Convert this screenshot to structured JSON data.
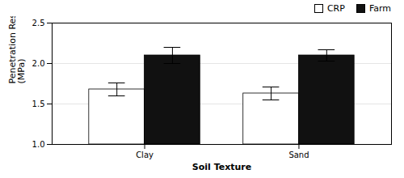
{
  "chart_data": {
    "type": "bar",
    "xlabel": "Soil Texture",
    "ylabel": "Penetration Resistance\n(MPa)",
    "categories": [
      "Clay",
      "Sand"
    ],
    "series": [
      {
        "name": "CRP",
        "color": "#ffffff",
        "values": [
          1.68,
          1.63
        ],
        "errors": [
          0.08,
          0.08
        ]
      },
      {
        "name": "Farm",
        "color": "#111111",
        "values": [
          2.1,
          2.1
        ],
        "errors": [
          0.1,
          0.07
        ]
      }
    ],
    "ylim": [
      1.0,
      2.5
    ],
    "yticks": [
      {
        "value": 1,
        "label": "1.0"
      },
      1.5,
      {
        "value": 2,
        "label": "2.0"
      },
      2.5
    ],
    "grid": true,
    "legend": "upper right"
  }
}
